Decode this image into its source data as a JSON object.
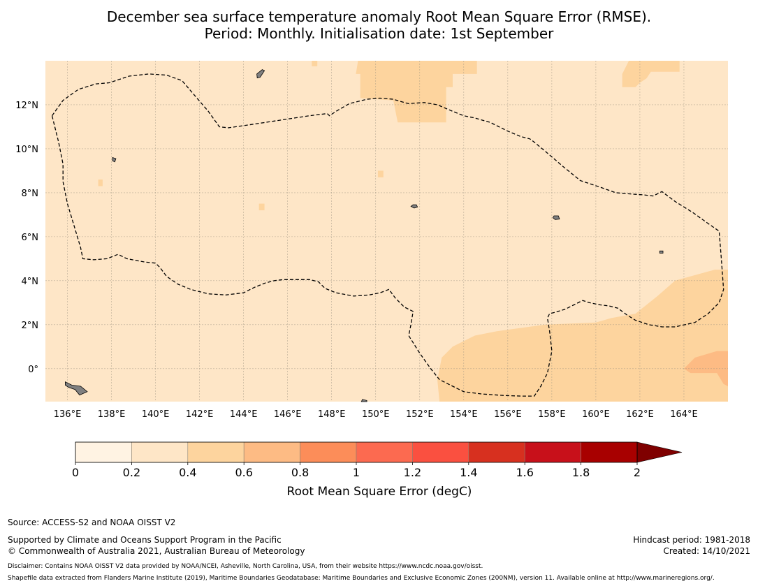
{
  "title": {
    "line1": "December sea surface temperature anomaly Root Mean Square Error (RMSE).",
    "line2": "Period: Monthly. Initialisation date: 1st September"
  },
  "map": {
    "lon_range": [
      135,
      166
    ],
    "lat_range": [
      -1.5,
      14
    ],
    "x_ticks": [
      {
        "lon": 136,
        "label": "136°E"
      },
      {
        "lon": 138,
        "label": "138°E"
      },
      {
        "lon": 140,
        "label": "140°E"
      },
      {
        "lon": 142,
        "label": "142°E"
      },
      {
        "lon": 144,
        "label": "144°E"
      },
      {
        "lon": 146,
        "label": "146°E"
      },
      {
        "lon": 148,
        "label": "148°E"
      },
      {
        "lon": 150,
        "label": "150°E"
      },
      {
        "lon": 152,
        "label": "152°E"
      },
      {
        "lon": 154,
        "label": "154°E"
      },
      {
        "lon": 156,
        "label": "156°E"
      },
      {
        "lon": 158,
        "label": "158°E"
      },
      {
        "lon": 160,
        "label": "160°E"
      },
      {
        "lon": 162,
        "label": "162°E"
      },
      {
        "lon": 164,
        "label": "164°E"
      }
    ],
    "y_ticks": [
      {
        "lat": 12,
        "label": "12°N"
      },
      {
        "lat": 10,
        "label": "10°N"
      },
      {
        "lat": 8,
        "label": "8°N"
      },
      {
        "lat": 6,
        "label": "6°N"
      },
      {
        "lat": 4,
        "label": "4°N"
      },
      {
        "lat": 2,
        "label": "2°N"
      },
      {
        "lat": 0,
        "label": "0°"
      }
    ],
    "background_color": "#fee6c7",
    "field_regions": [
      {
        "name": "north-central-0.4-0.6",
        "class": "0.4-0.6",
        "color": "#fdd49e",
        "points": [
          [
            149.2,
            14
          ],
          [
            154.6,
            14
          ],
          [
            154.6,
            13.4
          ],
          [
            153.5,
            13.4
          ],
          [
            153.5,
            12.8
          ],
          [
            153.2,
            12.8
          ],
          [
            153.2,
            11.2
          ],
          [
            151.0,
            11.2
          ],
          [
            150.8,
            12.2
          ],
          [
            149.3,
            12.3
          ],
          [
            149.3,
            13.4
          ],
          [
            149.1,
            13.4
          ]
        ]
      },
      {
        "name": "northeast-0.4-0.6",
        "class": "0.4-0.6",
        "color": "#fdd49e",
        "points": [
          [
            161.5,
            14
          ],
          [
            163.8,
            14
          ],
          [
            163.8,
            13.5
          ],
          [
            162.5,
            13.5
          ],
          [
            162.3,
            13.2
          ],
          [
            162.0,
            13.0
          ],
          [
            161.8,
            12.8
          ],
          [
            161.2,
            12.8
          ],
          [
            161.2,
            13.4
          ]
        ]
      },
      {
        "name": "southeast-0.4-0.6",
        "class": "0.4-0.6",
        "color": "#fdd49e",
        "points": [
          [
            152.9,
            -1.5
          ],
          [
            166,
            -1.5
          ],
          [
            166,
            4.5
          ],
          [
            165.4,
            4.5
          ],
          [
            163.6,
            4.0
          ],
          [
            162.8,
            3.3
          ],
          [
            161.8,
            2.5
          ],
          [
            160.7,
            2.3
          ],
          [
            160.0,
            2.1
          ],
          [
            157.7,
            2.0
          ],
          [
            155.5,
            1.7
          ],
          [
            154.5,
            1.5
          ],
          [
            153.5,
            1.0
          ],
          [
            153.0,
            0.5
          ],
          [
            152.8,
            -0.5
          ]
        ]
      },
      {
        "name": "southeast-0.6-0.8",
        "class": "0.6-0.8",
        "color": "#fdbb84",
        "points": [
          [
            166,
            0.8
          ],
          [
            165.5,
            0.8
          ],
          [
            164.5,
            0.5
          ],
          [
            164.2,
            0.2
          ],
          [
            164.0,
            0.0
          ],
          [
            164.3,
            -0.2
          ],
          [
            165.5,
            -0.2
          ],
          [
            165.8,
            -0.7
          ],
          [
            166,
            -0.8
          ]
        ]
      },
      {
        "name": "small-patch-1",
        "class": "0.4-0.6",
        "color": "#fdd49e",
        "points": [
          [
            137.4,
            8.6
          ],
          [
            137.6,
            8.6
          ],
          [
            137.6,
            8.3
          ],
          [
            137.4,
            8.3
          ]
        ]
      },
      {
        "name": "small-patch-2",
        "class": "0.4-0.6",
        "color": "#fdd49e",
        "points": [
          [
            144.7,
            7.5
          ],
          [
            144.95,
            7.5
          ],
          [
            144.95,
            7.2
          ],
          [
            144.7,
            7.2
          ]
        ]
      },
      {
        "name": "small-patch-3",
        "class": "0.4-0.6",
        "color": "#fdd49e",
        "points": [
          [
            150.1,
            9.0
          ],
          [
            150.35,
            9.0
          ],
          [
            150.35,
            8.7
          ],
          [
            150.1,
            8.7
          ]
        ]
      },
      {
        "name": "small-patch-4",
        "class": "0.4-0.6",
        "color": "#fdd49e",
        "points": [
          [
            147.1,
            14
          ],
          [
            147.35,
            14
          ],
          [
            147.35,
            13.75
          ],
          [
            147.1,
            13.75
          ]
        ]
      }
    ],
    "eez_boundary": [
      [
        135.3,
        11.5
      ],
      [
        135.8,
        12.2
      ],
      [
        136.5,
        12.7
      ],
      [
        137.3,
        12.95
      ],
      [
        137.9,
        13.0
      ],
      [
        138.8,
        13.3
      ],
      [
        139.7,
        13.4
      ],
      [
        140.5,
        13.35
      ],
      [
        141.2,
        13.1
      ],
      [
        141.8,
        12.4
      ],
      [
        142.4,
        11.7
      ],
      [
        142.9,
        11.0
      ],
      [
        143.3,
        10.95
      ],
      [
        144.0,
        11.05
      ],
      [
        145.0,
        11.2
      ],
      [
        146.0,
        11.35
      ],
      [
        147.0,
        11.5
      ],
      [
        147.8,
        11.6
      ],
      [
        147.9,
        11.5
      ],
      [
        148.2,
        11.7
      ],
      [
        148.8,
        12.05
      ],
      [
        149.6,
        12.25
      ],
      [
        150.2,
        12.3
      ],
      [
        150.8,
        12.25
      ],
      [
        151.3,
        12.1
      ],
      [
        151.5,
        12.05
      ],
      [
        152.2,
        12.1
      ],
      [
        152.8,
        12.0
      ],
      [
        153.5,
        11.7
      ],
      [
        154.0,
        11.5
      ],
      [
        154.5,
        11.4
      ],
      [
        155.2,
        11.2
      ],
      [
        155.6,
        11.0
      ],
      [
        156.0,
        10.8
      ],
      [
        156.6,
        10.55
      ],
      [
        157.0,
        10.45
      ],
      [
        157.2,
        10.3
      ],
      [
        157.8,
        9.8
      ],
      [
        158.5,
        9.2
      ],
      [
        159.3,
        8.55
      ],
      [
        160.2,
        8.25
      ],
      [
        160.9,
        8.0
      ],
      [
        161.5,
        7.95
      ],
      [
        162.2,
        7.9
      ],
      [
        162.6,
        7.85
      ],
      [
        163.0,
        8.05
      ],
      [
        163.6,
        7.6
      ],
      [
        164.4,
        7.1
      ],
      [
        165.1,
        6.6
      ],
      [
        165.6,
        6.25
      ],
      [
        165.7,
        5.0
      ],
      [
        165.8,
        3.6
      ],
      [
        165.6,
        3.0
      ],
      [
        165.1,
        2.5
      ],
      [
        164.5,
        2.1
      ],
      [
        163.6,
        1.9
      ],
      [
        163.0,
        1.9
      ],
      [
        162.4,
        2.0
      ],
      [
        161.8,
        2.2
      ],
      [
        161.4,
        2.45
      ],
      [
        161.0,
        2.75
      ],
      [
        160.6,
        2.85
      ],
      [
        160.2,
        2.9
      ],
      [
        159.7,
        3.0
      ],
      [
        159.4,
        3.1
      ],
      [
        159.0,
        2.9
      ],
      [
        158.6,
        2.7
      ],
      [
        158.1,
        2.55
      ],
      [
        157.9,
        2.5
      ],
      [
        157.8,
        2.3
      ],
      [
        157.9,
        1.7
      ],
      [
        158.0,
        0.8
      ],
      [
        157.8,
        -0.2
      ],
      [
        157.5,
        -0.8
      ],
      [
        157.2,
        -1.25
      ],
      [
        156.6,
        -1.25
      ],
      [
        155.8,
        -1.22
      ],
      [
        154.8,
        -1.15
      ],
      [
        154.0,
        -1.05
      ],
      [
        153.5,
        -0.8
      ],
      [
        152.9,
        -0.5
      ],
      [
        152.5,
        0.0
      ],
      [
        152.0,
        0.7
      ],
      [
        151.5,
        1.5
      ],
      [
        151.6,
        2.0
      ],
      [
        151.7,
        2.6
      ],
      [
        151.3,
        2.8
      ],
      [
        150.9,
        3.2
      ],
      [
        150.6,
        3.6
      ],
      [
        150.2,
        3.45
      ],
      [
        149.7,
        3.35
      ],
      [
        149.0,
        3.3
      ],
      [
        148.2,
        3.45
      ],
      [
        147.7,
        3.65
      ],
      [
        147.4,
        3.95
      ],
      [
        147.0,
        4.05
      ],
      [
        146.5,
        4.05
      ],
      [
        145.8,
        4.05
      ],
      [
        145.4,
        4.0
      ],
      [
        145.0,
        3.9
      ],
      [
        144.5,
        3.7
      ],
      [
        144.0,
        3.45
      ],
      [
        143.2,
        3.35
      ],
      [
        142.4,
        3.4
      ],
      [
        141.6,
        3.6
      ],
      [
        141.0,
        3.85
      ],
      [
        140.5,
        4.2
      ],
      [
        140.2,
        4.6
      ],
      [
        140.0,
        4.8
      ],
      [
        139.5,
        4.85
      ],
      [
        138.7,
        5.0
      ],
      [
        138.3,
        5.2
      ],
      [
        137.8,
        5.0
      ],
      [
        137.2,
        4.95
      ],
      [
        136.7,
        5.0
      ],
      [
        136.6,
        5.5
      ],
      [
        136.3,
        6.5
      ],
      [
        136.0,
        7.5
      ],
      [
        135.8,
        8.5
      ],
      [
        135.8,
        9.3
      ],
      [
        135.6,
        10.3
      ]
    ],
    "islands": [
      {
        "name": "guam-island",
        "points": [
          [
            144.6,
            13.4
          ],
          [
            144.85,
            13.6
          ],
          [
            144.95,
            13.55
          ],
          [
            144.75,
            13.25
          ],
          [
            144.62,
            13.22
          ]
        ]
      },
      {
        "name": "yap-island",
        "points": [
          [
            138.05,
            9.6
          ],
          [
            138.2,
            9.55
          ],
          [
            138.15,
            9.4
          ],
          [
            138.05,
            9.45
          ]
        ]
      },
      {
        "name": "chuuk-island",
        "points": [
          [
            151.7,
            7.45
          ],
          [
            151.85,
            7.45
          ],
          [
            151.9,
            7.35
          ],
          [
            151.75,
            7.3
          ],
          [
            151.6,
            7.38
          ]
        ]
      },
      {
        "name": "pohnpei-island",
        "points": [
          [
            158.1,
            6.95
          ],
          [
            158.3,
            6.95
          ],
          [
            158.35,
            6.8
          ],
          [
            158.15,
            6.78
          ],
          [
            158.05,
            6.86
          ]
        ]
      },
      {
        "name": "kosrae-island",
        "points": [
          [
            162.9,
            5.35
          ],
          [
            163.05,
            5.35
          ],
          [
            163.05,
            5.25
          ],
          [
            162.9,
            5.25
          ]
        ]
      },
      {
        "name": "new-guinea-islands",
        "points": [
          [
            135.9,
            -0.6
          ],
          [
            136.2,
            -0.75
          ],
          [
            136.6,
            -0.8
          ],
          [
            136.9,
            -1.05
          ],
          [
            136.55,
            -1.2
          ],
          [
            136.35,
            -0.95
          ],
          [
            136.05,
            -0.85
          ],
          [
            135.9,
            -0.75
          ]
        ]
      },
      {
        "name": "manus-island",
        "points": [
          [
            149.4,
            -1.4
          ],
          [
            149.6,
            -1.45
          ],
          [
            149.6,
            -1.5
          ],
          [
            149.35,
            -1.5
          ]
        ]
      }
    ]
  },
  "colorbar": {
    "label": "Root Mean Square Error (degC)",
    "ticks": [
      "0",
      "0.2",
      "0.4",
      "0.6",
      "0.8",
      "1",
      "1.2",
      "1.4",
      "1.6",
      "1.8",
      "2"
    ],
    "colors": [
      "#fff3e3",
      "#fee6c7",
      "#fdd49e",
      "#fdbb84",
      "#fc8d59",
      "#fc6a50",
      "#fa5040",
      "#d7301f",
      "#c8101a",
      "#a80000"
    ],
    "extend_color": "#7f0000"
  },
  "footer": {
    "source": "Source: ACCESS-S2 and NOAA OISST V2",
    "supported": "Supported by Climate and Oceans Support Program in the Pacific",
    "copyright": "© Commonwealth of Australia 2021, Australian Bureau of Meteorology",
    "hindcast": "Hindcast period: 1981-2018",
    "created": "Created: 14/10/2021",
    "disclaimer": "Disclaimer: Contains NOAA OISST V2 data provided by NOAA/NCEI, Asheville, North Carolina, USA, from their website https://www.ncdc.noaa.gov/oisst.",
    "shapefile": "Shapefile data extracted from Flanders Marine Institute (2019), Maritime Boundaries Geodatabase: Maritime Boundaries and Exclusive Economic Zones (200NM), version 11. Available online at http://www.marineregions.org/."
  }
}
